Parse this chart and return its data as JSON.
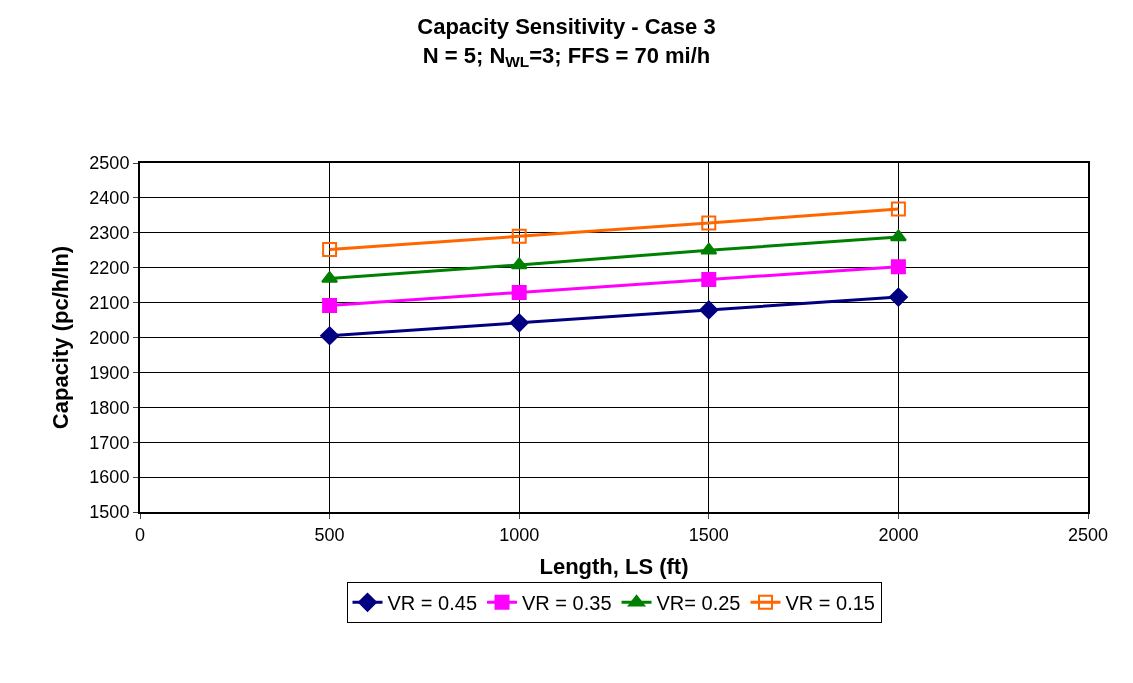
{
  "chart_data": {
    "type": "line",
    "title": "Capacity Sensitivity - Case 3",
    "subtitle": "N = 5; N$_{WL}$=3; FFS = 70 mi/h",
    "xlabel": "Length, LS (ft)",
    "ylabel": "Capacity (pc/h/ln)",
    "x": [
      500,
      1000,
      1500,
      2000
    ],
    "series": [
      {
        "name": "VR = 0.45",
        "color": "#000080",
        "marker": "diamond",
        "values": [
          2005,
          2042,
          2079,
          2116
        ]
      },
      {
        "name": "VR = 0.35",
        "color": "#ff00ff",
        "marker": "square",
        "values": [
          2092,
          2129,
          2166,
          2203
        ]
      },
      {
        "name": "VR= 0.25",
        "color": "#008000",
        "marker": "triangle",
        "values": [
          2169,
          2208,
          2250,
          2288
        ]
      },
      {
        "name": "VR = 0.15",
        "color": "#ff6600",
        "marker": "square-open",
        "values": [
          2252,
          2290,
          2328,
          2368
        ]
      }
    ],
    "xlim": [
      0,
      2500
    ],
    "xticks": [
      0,
      500,
      1000,
      1500,
      2000,
      2500
    ],
    "ylim": [
      1500,
      2500
    ],
    "yticks": [
      1500,
      1600,
      1700,
      1800,
      1900,
      2000,
      2100,
      2200,
      2300,
      2400,
      2500
    ],
    "grid": true,
    "legend": "bottom",
    "line_style": "solid"
  }
}
